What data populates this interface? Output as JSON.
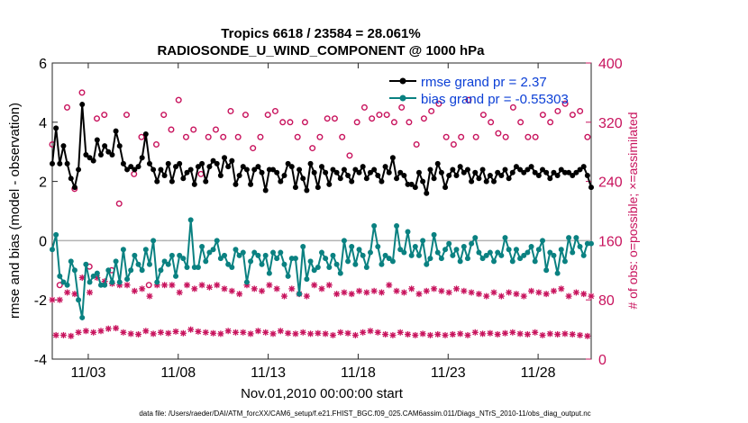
{
  "chart_data": {
    "type": "line",
    "title_line1": "Tropics 6618 / 23584 = 28.061%",
    "title_line2": "RADIOSONDE_U_WIND_COMPONENT @ 1000 hPa",
    "xlabel": "Nov.01,2010 00:00:00 start",
    "ylabel_left": "rmse and bias (model - observation)",
    "ylabel_right": "# of obs: o=possible; ×=assimilated",
    "x_tick_labels": [
      "11/03",
      "11/08",
      "11/13",
      "11/18",
      "11/23",
      "11/28"
    ],
    "x_tick_days": [
      3,
      8,
      13,
      18,
      23,
      28
    ],
    "xlim": [
      1.0,
      30.95
    ],
    "ylim_left": [
      -4,
      6
    ],
    "y_ticks_left": [
      "-4",
      "-2",
      "0",
      "2",
      "4",
      "6"
    ],
    "ylim_right": [
      0,
      400
    ],
    "y_ticks_right": [
      "0",
      "80",
      "160",
      "240",
      "320",
      "400"
    ],
    "zero_line": 0,
    "colors": {
      "rmse": "#000000",
      "bias": "#0a8181",
      "obs": "#c8135d",
      "zero": "#b3b3b3",
      "legend_text": "#0b3fd6"
    },
    "series": [
      {
        "name": "rmse grand pr = 2.37",
        "key": "rmse",
        "values": [
          2.6,
          3.8,
          2.6,
          3.2,
          2.6,
          2.1,
          1.8,
          2.4,
          4.6,
          2.9,
          2.8,
          2.7,
          3.4,
          2.9,
          3.2,
          3.0,
          2.9,
          3.7,
          3.2,
          2.6,
          2.4,
          2.5,
          2.4,
          2.5,
          2.8,
          3.6,
          2.6,
          2.4,
          2.0,
          2.4,
          2.2,
          2.6,
          2.0,
          2.5,
          2.6,
          2.1,
          2.3,
          2.4,
          1.9,
          2.5,
          2.6,
          2.0,
          2.5,
          2.7,
          2.6,
          2.2,
          2.8,
          2.5,
          2.7,
          1.9,
          2.2,
          2.5,
          2.4,
          1.9,
          2.4,
          2.5,
          2.3,
          1.7,
          2.4,
          2.4,
          2.3,
          2.0,
          2.2,
          2.6,
          2.5,
          1.8,
          2.4,
          2.1,
          1.7,
          2.6,
          2.3,
          1.8,
          2.5,
          2.3,
          1.9,
          2.4,
          2.3,
          2.1,
          2.4,
          2.2,
          2.0,
          2.4,
          2.3,
          2.5,
          2.1,
          2.3,
          2.4,
          2.2,
          2.0,
          2.5,
          2.3,
          2.8,
          2.1,
          2.3,
          2.2,
          1.9,
          1.9,
          1.8,
          2.3,
          2.0,
          1.6,
          2.4,
          2.1,
          2.6,
          2.3,
          1.8,
          2.2,
          2.4,
          2.2,
          2.5,
          2.3,
          2.4,
          2.0,
          2.3,
          2.1,
          2.4,
          2.0,
          2.2,
          2.0,
          2.3,
          2.2,
          2.4,
          2.1,
          2.3,
          2.5,
          2.4,
          2.3,
          2.4,
          2.5,
          2.3,
          2.2,
          2.4,
          2.3,
          2.1,
          2.3,
          2.2,
          2.4,
          2.3,
          2.3,
          2.2,
          2.3,
          2.4,
          2.5,
          2.2,
          1.8
        ]
      },
      {
        "name": "bias grand pr = -0.55303",
        "key": "bias",
        "values": [
          -0.3,
          0.2,
          -1.2,
          -1.4,
          -1.5,
          -0.7,
          -1.0,
          -2.0,
          -2.6,
          -0.8,
          -1.4,
          -1.2,
          -1.1,
          -1.5,
          -1.5,
          -1.0,
          -1.4,
          -0.7,
          -1.4,
          -0.3,
          -1.3,
          -1.0,
          -0.5,
          -0.8,
          -1.0,
          -0.3,
          -0.8,
          0.0,
          -1.4,
          -1.0,
          -0.7,
          -0.8,
          -0.5,
          -1.2,
          -0.5,
          -0.6,
          -0.9,
          0.7,
          -0.9,
          -0.9,
          -0.2,
          -0.7,
          -0.4,
          -0.3,
          0.0,
          -0.6,
          -0.5,
          -0.8,
          -0.9,
          -0.3,
          -0.5,
          -0.4,
          -1.4,
          -0.7,
          -0.4,
          -0.5,
          -0.8,
          -0.5,
          -1.1,
          -0.4,
          -0.6,
          -0.4,
          -0.8,
          -1.2,
          -0.6,
          -0.6,
          -1.8,
          -0.2,
          -1.3,
          -0.7,
          -1.0,
          -0.9,
          -0.4,
          -0.6,
          -0.9,
          -0.5,
          -0.8,
          -1.1,
          0.0,
          -0.7,
          -0.2,
          -0.8,
          -0.3,
          -0.5,
          -0.9,
          -0.4,
          0.5,
          -0.2,
          -0.8,
          -0.5,
          -0.6,
          -0.7,
          0.5,
          -0.3,
          -0.4,
          0.3,
          -0.5,
          -0.2,
          -0.5,
          0.0,
          -0.8,
          -0.6,
          0.2,
          -0.4,
          -0.6,
          -0.3,
          -0.1,
          -0.5,
          -0.3,
          -0.7,
          -0.2,
          -0.6,
          -0.1,
          0.1,
          -0.4,
          -0.6,
          -0.5,
          -0.4,
          -0.7,
          -0.4,
          -0.5,
          0.1,
          -0.3,
          -0.7,
          -0.3,
          -0.6,
          -0.5,
          -0.4,
          -0.2,
          -0.7,
          -0.3,
          0.0,
          -1.0,
          -0.4,
          -0.5,
          -1.1,
          -0.3,
          -0.7,
          0.1,
          -0.4,
          0.1,
          -0.2,
          -0.5,
          -0.1,
          -0.1
        ]
      },
      {
        "name": "possible obs",
        "key": "obs_possible",
        "values": [
          290,
          322,
          100,
          275,
          340,
          310,
          230,
          310,
          360,
          300,
          125,
          215,
          325,
          90,
          330,
          350,
          120,
          230,
          210,
          240,
          330,
          80,
          250,
          330,
          300,
          300,
          100,
          340,
          290,
          210,
          330,
          310,
          310,
          260,
          350,
          300,
          300,
          240,
          310,
          220,
          250,
          340,
          300,
          270,
          310,
          290,
          300,
          310,
          335,
          260,
          300,
          320,
          330,
          275,
          285,
          310,
          300,
          325,
          330,
          270,
          335,
          300,
          320,
          280,
          320,
          345,
          300,
          325,
          320,
          305,
          285,
          330,
          300,
          310,
          325,
          290,
          325,
          300,
          300,
          300,
          275,
          330,
          320,
          320,
          340,
          245,
          325,
          310,
          330,
          300,
          330,
          290,
          320,
          325,
          340,
          300,
          320,
          330,
          290,
          320,
          325,
          270,
          335,
          300,
          345,
          330,
          300,
          340,
          290,
          320,
          300,
          310,
          350,
          310,
          300,
          350,
          330,
          300,
          320,
          345,
          305,
          330,
          300,
          320,
          340,
          290,
          320,
          330,
          300,
          325,
          300,
          340,
          330,
          310,
          320,
          330,
          335,
          300,
          345,
          310,
          330,
          320,
          335,
          340,
          300,
          330
        ]
      },
      {
        "name": "assimilated obs",
        "key": "obs_assimilated",
        "values": [
          80,
          85,
          80,
          85,
          90,
          82,
          88,
          95,
          110,
          100,
          90,
          95,
          110,
          100,
          105,
          108,
          102,
          110,
          100,
          95,
          100,
          90,
          92,
          88,
          95,
          100,
          85,
          90,
          100,
          95,
          100,
          92,
          100,
          98,
          90,
          92,
          100,
          105,
          95,
          98,
          100,
          95,
          97,
          92,
          100,
          90,
          95,
          100,
          92,
          95,
          88,
          95,
          100,
          90,
          95,
          100,
          92,
          95,
          100,
          90,
          95,
          100,
          85,
          92,
          95,
          90,
          88,
          95,
          85,
          90,
          100,
          92,
          95,
          90,
          100,
          85,
          88,
          95,
          90,
          92,
          88,
          85,
          92,
          95,
          90,
          100,
          92,
          95,
          90,
          88,
          100,
          85,
          92,
          95,
          90,
          88,
          95,
          85,
          88,
          90,
          92,
          85,
          95,
          88,
          92,
          85,
          90,
          88,
          95,
          90,
          92,
          85,
          90,
          95,
          88,
          90,
          85,
          92,
          90,
          88,
          85,
          92,
          90,
          95,
          88,
          90,
          85,
          88,
          92,
          95,
          90,
          85,
          88,
          90,
          92,
          88,
          95,
          90,
          85,
          88,
          90,
          85,
          88,
          82,
          85
        ]
      }
    ],
    "footer": "data file: /Users/raeder/DAI/ATM_forcXX/CAM6_setup/f.e21.FHIST_BGC.f09_025.CAM6assim.011/Diags_NTrS_2010-11/obs_diag_output.nc"
  }
}
